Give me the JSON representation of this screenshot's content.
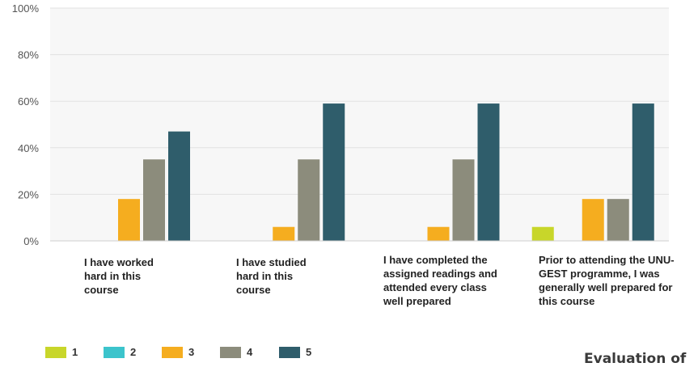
{
  "chart_data": {
    "type": "bar",
    "categories": [
      "I have worked\nhard in this\ncourse",
      "I have studied\nhard in this\ncourse",
      "I have completed the\nassigned readings and\nattended every class\nwell prepared",
      "Prior to attending the UNU-\nGEST programme, I was\ngenerally well prepared for\nthis course"
    ],
    "series": [
      {
        "name": "1",
        "color": "#c8d62a",
        "values": [
          0,
          0,
          0,
          6
        ]
      },
      {
        "name": "2",
        "color": "#3cc4cc",
        "values": [
          0,
          0,
          0,
          0
        ]
      },
      {
        "name": "3",
        "color": "#f5ad1f",
        "values": [
          18,
          6,
          6,
          18
        ]
      },
      {
        "name": "4",
        "color": "#8c8c7c",
        "values": [
          35,
          35,
          35,
          18
        ]
      },
      {
        "name": "5",
        "color": "#2f5d6b",
        "values": [
          47,
          59,
          59,
          59
        ]
      }
    ],
    "ylim": [
      0,
      100
    ],
    "yticks": [
      "0%",
      "20%",
      "40%",
      "60%",
      "80%",
      "100%"
    ],
    "grid": true,
    "legend_position": "bottom-left"
  },
  "footer_text": "Evaluation of"
}
